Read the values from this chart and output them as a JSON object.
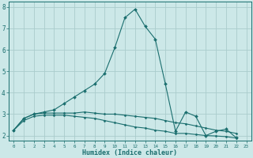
{
  "xlabel": "Humidex (Indice chaleur)",
  "background_color": "#cce8e8",
  "grid_color": "#aacccc",
  "line_color": "#1a6e6e",
  "x_values": [
    0,
    1,
    2,
    3,
    4,
    5,
    6,
    7,
    8,
    9,
    10,
    11,
    12,
    13,
    14,
    15,
    16,
    17,
    18,
    19,
    20,
    21,
    22,
    23
  ],
  "series1": [
    2.25,
    2.8,
    3.0,
    3.1,
    3.2,
    3.5,
    3.8,
    4.1,
    4.4,
    4.9,
    6.1,
    7.5,
    7.9,
    7.1,
    6.5,
    4.4,
    2.2,
    3.1,
    2.9,
    2.0,
    2.2,
    2.3,
    1.9,
    null
  ],
  "series2": [
    2.25,
    2.8,
    3.0,
    3.05,
    3.05,
    3.05,
    3.05,
    3.1,
    3.05,
    3.0,
    3.0,
    2.95,
    2.9,
    2.85,
    2.8,
    2.7,
    2.6,
    2.55,
    2.45,
    2.35,
    2.25,
    2.2,
    2.1,
    null
  ],
  "series3": [
    2.25,
    2.7,
    2.9,
    2.95,
    2.95,
    2.95,
    2.9,
    2.85,
    2.8,
    2.7,
    2.6,
    2.5,
    2.4,
    2.35,
    2.25,
    2.2,
    2.1,
    2.1,
    2.05,
    2.0,
    1.98,
    1.95,
    1.88,
    null
  ],
  "ylim": [
    1.75,
    8.25
  ],
  "xlim": [
    -0.5,
    23.5
  ],
  "yticks": [
    2,
    3,
    4,
    5,
    6,
    7,
    8
  ],
  "xtick_labels": [
    "0",
    "1",
    "2",
    "3",
    "4",
    "5",
    "6",
    "7",
    "8",
    "9",
    "10",
    "11",
    "12",
    "13",
    "14",
    "15",
    "16",
    "17",
    "18",
    "19",
    "20",
    "21",
    "22",
    "23"
  ]
}
